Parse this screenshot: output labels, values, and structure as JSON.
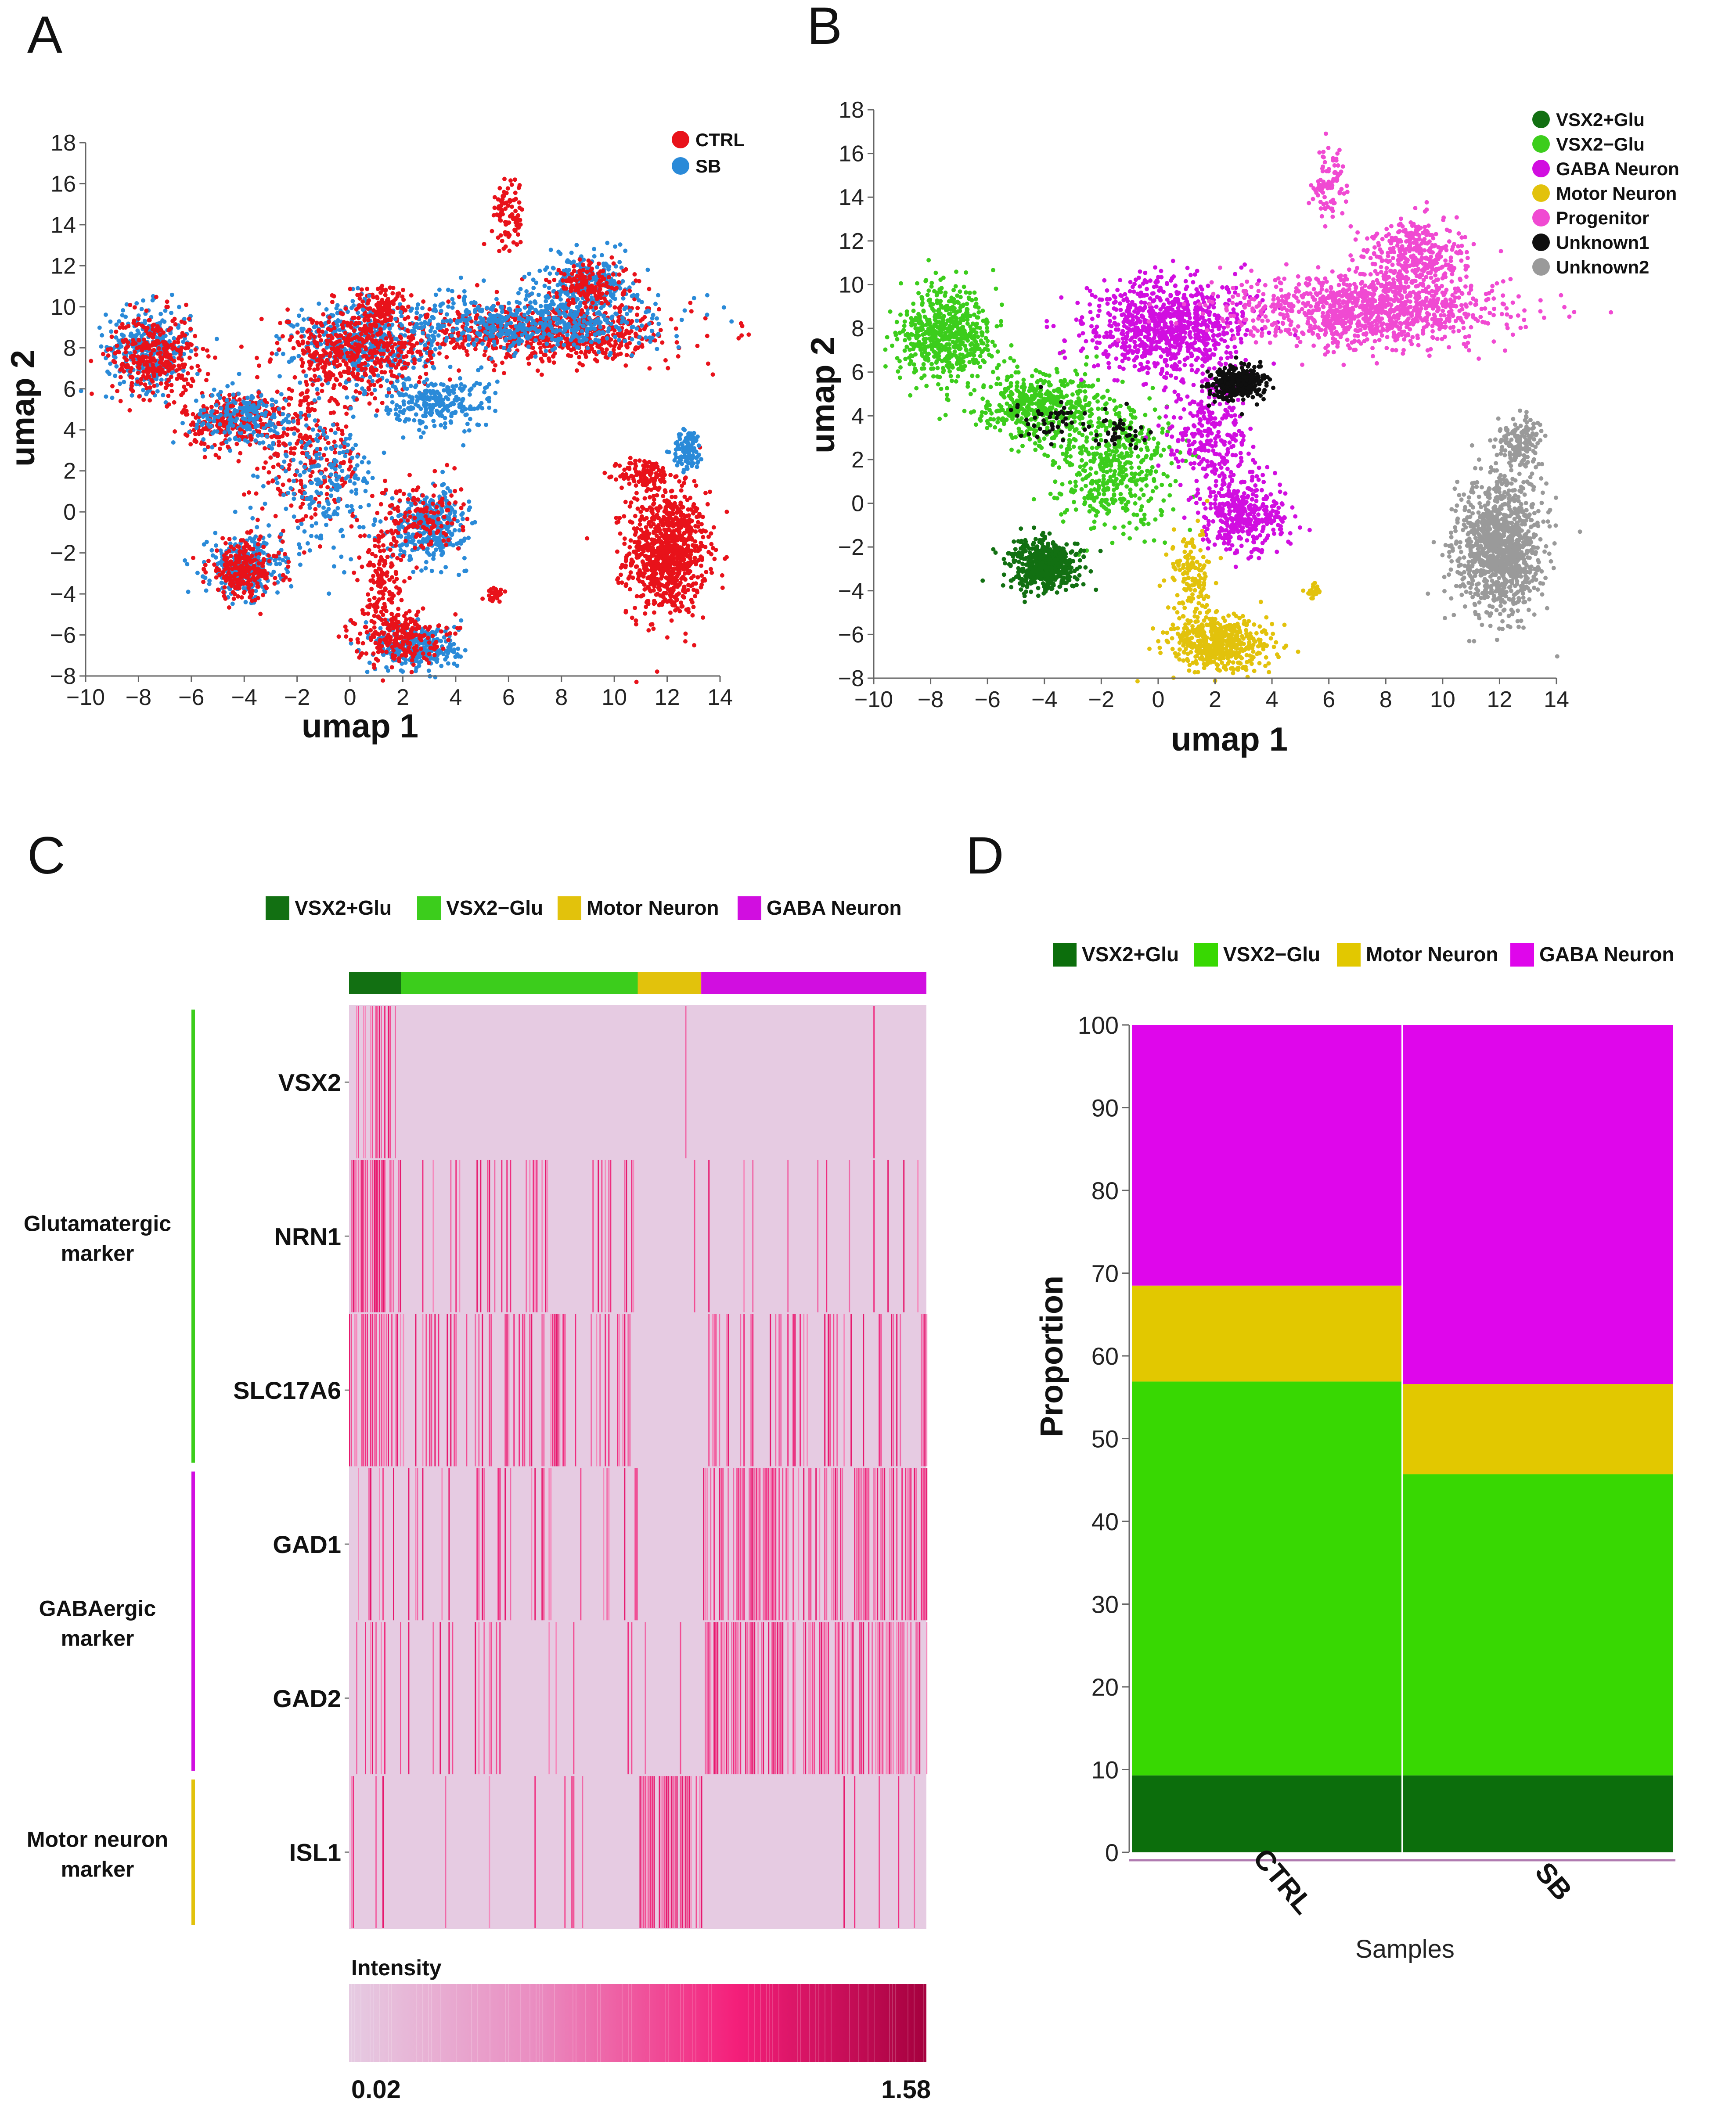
{
  "panels": {
    "A": {
      "label": "A",
      "chart_data": {
        "type": "scatter",
        "title": "",
        "xlabel": "umap 1",
        "ylabel": "umap 2",
        "xlim": [
          -10,
          14
        ],
        "ylim": [
          -8,
          18
        ],
        "xticks": [
          "-10",
          "-8",
          "-6",
          "-4",
          "-2",
          "0",
          "2",
          "4",
          "6",
          "8",
          "10",
          "12",
          "14"
        ],
        "yticks": [
          "-8",
          "-6",
          "-4",
          "-2",
          "0",
          "2",
          "4",
          "6",
          "8",
          "10",
          "12",
          "14",
          "16",
          "18"
        ],
        "legend": [
          {
            "name": "CTRL",
            "color": "#e8121a"
          },
          {
            "name": "SB",
            "color": "#2a8ad8"
          }
        ],
        "clusters": [
          {
            "name": "CTRL",
            "color": "#e8121a",
            "cx": 12.0,
            "cy": -2.0,
            "sx": 0.75,
            "sy": 1.5,
            "n": 900
          },
          {
            "name": "CTRL",
            "color": "#e8121a",
            "cx": 11.2,
            "cy": 1.8,
            "sx": 0.5,
            "sy": 0.4,
            "n": 120
          },
          {
            "name": "SB",
            "color": "#2a8ad8",
            "cx": 12.8,
            "cy": 3.0,
            "sx": 0.3,
            "sy": 0.5,
            "n": 110
          },
          {
            "name": "SB",
            "color": "#2a8ad8",
            "cx": -7.6,
            "cy": 8.0,
            "sx": 0.8,
            "sy": 1.0,
            "n": 330
          },
          {
            "name": "CTRL",
            "color": "#e8121a",
            "cx": -7.4,
            "cy": 7.6,
            "sx": 0.8,
            "sy": 1.0,
            "n": 330
          },
          {
            "name": "CTRL",
            "color": "#e8121a",
            "cx": -4.3,
            "cy": 4.5,
            "sx": 1.0,
            "sy": 0.7,
            "n": 300
          },
          {
            "name": "SB",
            "color": "#2a8ad8",
            "cx": -4.0,
            "cy": 4.6,
            "sx": 1.0,
            "sy": 0.7,
            "n": 200
          },
          {
            "name": "SB",
            "color": "#2a8ad8",
            "cx": -4.0,
            "cy": -2.7,
            "sx": 0.7,
            "sy": 0.7,
            "n": 300
          },
          {
            "name": "CTRL",
            "color": "#e8121a",
            "cx": -4.0,
            "cy": -2.8,
            "sx": 0.7,
            "sy": 0.7,
            "n": 250
          },
          {
            "name": "CTRL",
            "color": "#e8121a",
            "cx": -1.5,
            "cy": 2.5,
            "sx": 1.0,
            "sy": 1.6,
            "n": 250
          },
          {
            "name": "SB",
            "color": "#2a8ad8",
            "cx": -1.0,
            "cy": 1.5,
            "sx": 1.0,
            "sy": 1.6,
            "n": 220
          },
          {
            "name": "SB",
            "color": "#2a8ad8",
            "cx": 0.5,
            "cy": 8.2,
            "sx": 1.3,
            "sy": 1.0,
            "n": 480
          },
          {
            "name": "CTRL",
            "color": "#e8121a",
            "cx": 0.2,
            "cy": 7.8,
            "sx": 1.4,
            "sy": 1.0,
            "n": 480
          },
          {
            "name": "SB",
            "color": "#2a8ad8",
            "cx": 3.0,
            "cy": -0.7,
            "sx": 0.7,
            "sy": 0.8,
            "n": 360
          },
          {
            "name": "CTRL",
            "color": "#e8121a",
            "cx": 2.6,
            "cy": -0.2,
            "sx": 0.8,
            "sy": 0.9,
            "n": 140
          },
          {
            "name": "SB",
            "color": "#2a8ad8",
            "cx": 2.6,
            "cy": -6.6,
            "sx": 0.8,
            "sy": 0.6,
            "n": 300
          },
          {
            "name": "CTRL",
            "color": "#e8121a",
            "cx": 1.8,
            "cy": -6.1,
            "sx": 0.8,
            "sy": 0.6,
            "n": 220
          },
          {
            "name": "CTRL",
            "color": "#e8121a",
            "cx": 1.2,
            "cy": -3.2,
            "sx": 0.4,
            "sy": 1.4,
            "n": 150
          },
          {
            "name": "SB",
            "color": "#2a8ad8",
            "cx": 3.2,
            "cy": 5.3,
            "sx": 1.1,
            "sy": 0.6,
            "n": 240
          },
          {
            "name": "CTRL",
            "color": "#e8121a",
            "cx": 1.3,
            "cy": 10.0,
            "sx": 0.5,
            "sy": 0.5,
            "n": 110
          },
          {
            "name": "CTRL",
            "color": "#e8121a",
            "cx": 7.5,
            "cy": 8.7,
            "sx": 2.3,
            "sy": 0.7,
            "n": 750
          },
          {
            "name": "SB",
            "color": "#2a8ad8",
            "cx": 7.0,
            "cy": 9.2,
            "sx": 2.3,
            "sy": 0.7,
            "n": 550
          },
          {
            "name": "SB",
            "color": "#2a8ad8",
            "cx": 9.0,
            "cy": 11.2,
            "sx": 0.9,
            "sy": 0.7,
            "n": 260
          },
          {
            "name": "CTRL",
            "color": "#e8121a",
            "cx": 9.2,
            "cy": 11.0,
            "sx": 0.8,
            "sy": 0.6,
            "n": 150
          },
          {
            "name": "CTRL",
            "color": "#e8121a",
            "cx": 6.0,
            "cy": 14.5,
            "sx": 0.3,
            "sy": 0.9,
            "n": 90
          },
          {
            "name": "CTRL",
            "color": "#e8121a",
            "cx": 5.5,
            "cy": -4.0,
            "sx": 0.15,
            "sy": 0.15,
            "n": 25
          }
        ]
      }
    },
    "B": {
      "label": "B",
      "chart_data": {
        "type": "scatter",
        "title": "",
        "xlabel": "umap 1",
        "ylabel": "umap 2",
        "xlim": [
          -10,
          14
        ],
        "ylim": [
          -8,
          18
        ],
        "xticks": [
          "-10",
          "-8",
          "-6",
          "-4",
          "-2",
          "0",
          "2",
          "4",
          "6",
          "8",
          "10",
          "12",
          "14"
        ],
        "yticks": [
          "-8",
          "-6",
          "-4",
          "-2",
          "0",
          "2",
          "4",
          "6",
          "8",
          "10",
          "12",
          "14",
          "16",
          "18"
        ],
        "legend": [
          {
            "name": "VSX2+Glu",
            "color": "#127012"
          },
          {
            "name": "VSX2−Glu",
            "color": "#3ccd1c"
          },
          {
            "name": "GABA Neuron",
            "color": "#d10ee0"
          },
          {
            "name": "Motor Neuron",
            "color": "#e2c20c"
          },
          {
            "name": "Progenitor",
            "color": "#f04ad2"
          },
          {
            "name": "Unknown1",
            "color": "#0f0f0f"
          },
          {
            "name": "Unknown2",
            "color": "#9a9a9a"
          }
        ],
        "clusters": [
          {
            "name": "Unknown2",
            "color": "#9a9a9a",
            "cx": 12.0,
            "cy": -2.0,
            "sx": 0.75,
            "sy": 1.5,
            "n": 1100
          },
          {
            "name": "Unknown2",
            "color": "#9a9a9a",
            "cx": 12.7,
            "cy": 2.8,
            "sx": 0.35,
            "sy": 0.6,
            "n": 160
          },
          {
            "name": "VSX2−Glu",
            "color": "#3ccd1c",
            "cx": -7.5,
            "cy": 7.8,
            "sx": 0.8,
            "sy": 1.1,
            "n": 600
          },
          {
            "name": "VSX2−Glu",
            "color": "#3ccd1c",
            "cx": -4.3,
            "cy": 4.5,
            "sx": 1.0,
            "sy": 0.8,
            "n": 450
          },
          {
            "name": "VSX2−Glu",
            "color": "#3ccd1c",
            "cx": -1.6,
            "cy": 1.8,
            "sx": 1.1,
            "sy": 1.5,
            "n": 500
          },
          {
            "name": "VSX2+Glu",
            "color": "#127012",
            "cx": -4.0,
            "cy": -2.8,
            "sx": 0.6,
            "sy": 0.6,
            "n": 550
          },
          {
            "name": "GABA Neuron",
            "color": "#d10ee0",
            "cx": 0.3,
            "cy": 8.0,
            "sx": 1.4,
            "sy": 1.1,
            "n": 900
          },
          {
            "name": "GABA Neuron",
            "color": "#d10ee0",
            "cx": 3.0,
            "cy": -0.5,
            "sx": 0.8,
            "sy": 0.9,
            "n": 400
          },
          {
            "name": "GABA Neuron",
            "color": "#d10ee0",
            "cx": 1.8,
            "cy": 3.0,
            "sx": 0.7,
            "sy": 1.2,
            "n": 250
          },
          {
            "name": "Progenitor",
            "color": "#f04ad2",
            "cx": 7.4,
            "cy": 8.8,
            "sx": 2.3,
            "sy": 0.8,
            "n": 1100
          },
          {
            "name": "Progenitor",
            "color": "#f04ad2",
            "cx": 9.0,
            "cy": 11.3,
            "sx": 0.9,
            "sy": 0.8,
            "n": 380
          },
          {
            "name": "Progenitor",
            "color": "#f04ad2",
            "cx": 6.0,
            "cy": 14.5,
            "sx": 0.3,
            "sy": 0.9,
            "n": 90
          },
          {
            "name": "Motor Neuron",
            "color": "#e2c20c",
            "cx": 2.2,
            "cy": -6.4,
            "sx": 0.9,
            "sy": 0.6,
            "n": 500
          },
          {
            "name": "Motor Neuron",
            "color": "#e2c20c",
            "cx": 1.2,
            "cy": -3.5,
            "sx": 0.4,
            "sy": 1.3,
            "n": 150
          },
          {
            "name": "Motor Neuron",
            "color": "#e2c20c",
            "cx": 5.5,
            "cy": -4.0,
            "sx": 0.15,
            "sy": 0.15,
            "n": 25
          },
          {
            "name": "Unknown1",
            "color": "#0f0f0f",
            "cx": 2.8,
            "cy": 5.5,
            "sx": 0.5,
            "sy": 0.35,
            "n": 350
          },
          {
            "name": "Unknown1",
            "color": "#0f0f0f",
            "cx": -3.8,
            "cy": 3.8,
            "sx": 0.6,
            "sy": 0.4,
            "n": 50
          },
          {
            "name": "Unknown1",
            "color": "#0f0f0f",
            "cx": -1.3,
            "cy": 3.2,
            "sx": 0.5,
            "sy": 0.4,
            "n": 40
          }
        ]
      }
    },
    "C": {
      "label": "C",
      "chart_data": {
        "type": "heatmap",
        "legend": [
          {
            "name": "VSX2+Glu",
            "color": "#127012"
          },
          {
            "name": "VSX2−Glu",
            "color": "#3ccd1c"
          },
          {
            "name": "Motor Neuron",
            "color": "#e2c20c"
          },
          {
            "name": "GABA Neuron",
            "color": "#d10ee0"
          }
        ],
        "column_groups": [
          {
            "name": "VSX2+Glu",
            "color": "#127012",
            "fraction": 0.09
          },
          {
            "name": "VSX2−Glu",
            "color": "#3ccd1c",
            "fraction": 0.41
          },
          {
            "name": "Motor Neuron",
            "color": "#e2c20c",
            "fraction": 0.11
          },
          {
            "name": "GABA Neuron",
            "color": "#d10ee0",
            "fraction": 0.39
          }
        ],
        "genes": [
          "VSX2",
          "NRN1",
          "SLC17A6",
          "GAD1",
          "GAD2",
          "ISL1"
        ],
        "expression_density": [
          [
            0.55,
            0.02,
            0.02,
            0.03
          ],
          [
            0.75,
            0.28,
            0.02,
            0.1
          ],
          [
            0.8,
            0.45,
            0.05,
            0.3
          ],
          [
            0.3,
            0.25,
            0.02,
            0.6
          ],
          [
            0.3,
            0.2,
            0.02,
            0.65
          ],
          [
            0.04,
            0.05,
            0.85,
            0.05
          ]
        ],
        "marker_groups": [
          {
            "label": [
              "Glutamatergic",
              "marker"
            ],
            "color": "#3ccd1c",
            "genes": [
              "VSX2",
              "NRN1",
              "SLC17A6"
            ]
          },
          {
            "label": [
              "GABAergic",
              "marker"
            ],
            "color": "#d10ee0",
            "genes": [
              "GAD1",
              "GAD2"
            ]
          },
          {
            "label": [
              "Motor neuron",
              "marker"
            ],
            "color": "#e2c20c",
            "genes": [
              "ISL1"
            ]
          }
        ],
        "colorbar": {
          "title": "Intensity",
          "min": "0.02",
          "max": "1.58",
          "colors": [
            "#e6cbe2",
            "#ea8bc0",
            "#f41f7a",
            "#a5003e"
          ]
        },
        "background_color": "#e6cbe2"
      }
    },
    "D": {
      "label": "D",
      "chart_data": {
        "type": "bar",
        "stacked": true,
        "categories": [
          "CTRL",
          "SB"
        ],
        "xlabel": "Samples",
        "ylabel": "Proportion",
        "ylim": [
          0,
          100
        ],
        "yticks": [
          "0",
          "10",
          "20",
          "30",
          "40",
          "50",
          "60",
          "70",
          "80",
          "90",
          "100"
        ],
        "series": [
          {
            "name": "VSX2+Glu",
            "color": "#0c6e0c",
            "values": [
              9.3,
              9.3
            ]
          },
          {
            "name": "VSX2−Glu",
            "color": "#38d802",
            "values": [
              47.6,
              36.4
            ]
          },
          {
            "name": "Motor Neuron",
            "color": "#e2c800",
            "values": [
              11.6,
              10.9
            ]
          },
          {
            "name": "GABA Neuron",
            "color": "#df06eb",
            "values": [
              31.5,
              43.4
            ]
          }
        ]
      }
    }
  }
}
